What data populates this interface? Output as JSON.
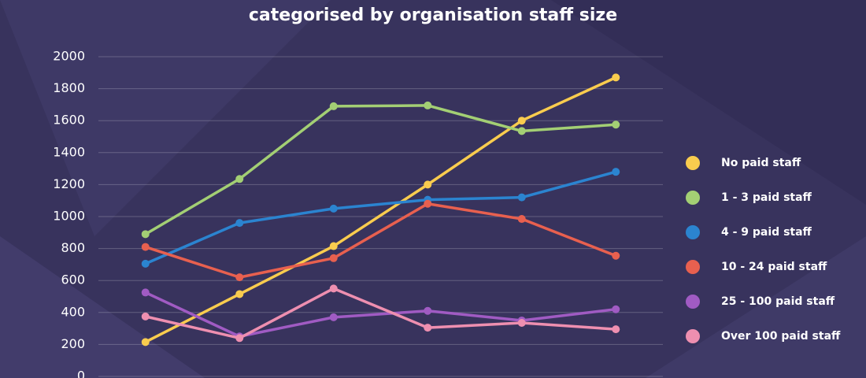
{
  "chart_data": {
    "type": "line",
    "title": "categorised by organisation staff size",
    "categories": [
      null,
      null,
      null,
      null,
      null,
      null
    ],
    "series": [
      {
        "name": "No paid staff",
        "color": "#f9cc4e",
        "values": [
          215,
          515,
          815,
          1200,
          1600,
          1870
        ]
      },
      {
        "name": "1 - 3 paid staff",
        "color": "#a3cf74",
        "values": [
          890,
          1235,
          1690,
          1695,
          1535,
          1575
        ]
      },
      {
        "name": "4 - 9 paid staff",
        "color": "#2b84d0",
        "values": [
          705,
          960,
          1050,
          1105,
          1120,
          1280
        ]
      },
      {
        "name": "10 - 24 paid staff",
        "color": "#e8604f",
        "values": [
          810,
          620,
          740,
          1080,
          985,
          755
        ]
      },
      {
        "name": "25 - 100 paid staff",
        "color": "#a05bc3",
        "values": [
          525,
          250,
          370,
          410,
          350,
          420
        ]
      },
      {
        "name": "Over 100 paid staff",
        "color": "#ee8fb0",
        "values": [
          375,
          240,
          550,
          305,
          335,
          295
        ]
      }
    ],
    "ylim": [
      0,
      2000
    ],
    "yticks": [
      0,
      200,
      400,
      600,
      800,
      1000,
      1200,
      1400,
      1600,
      1800,
      2000
    ],
    "grid": true,
    "legend": "right"
  }
}
